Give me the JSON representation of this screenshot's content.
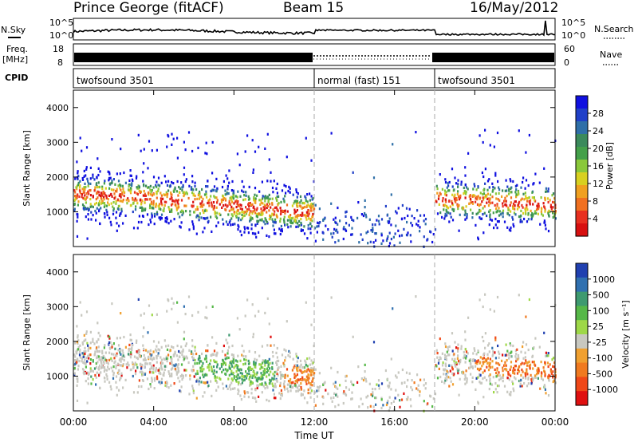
{
  "header": {
    "station": "Prince George (fitACF)",
    "beam": "Beam 15",
    "date": "16/May/2012"
  },
  "noise_panel": {
    "left_label": "N.Sky",
    "right_label": "N.Search",
    "tick_top": "10^5",
    "tick_bottom": "10^0"
  },
  "freq_panel": {
    "label_line1": "Freq.",
    "label_line2": "[MHz]",
    "left_ticks": [
      "18",
      "8"
    ],
    "right_ticks": [
      "60",
      "0"
    ],
    "right_label": "Nave"
  },
  "cpid_panel": {
    "label": "CPID",
    "segments": [
      {
        "name": "twofsound 3501",
        "start": 0,
        "end": 12
      },
      {
        "name": "normal (fast) 151",
        "start": 12,
        "end": 18
      },
      {
        "name": "twofsound 3501",
        "start": 18,
        "end": 24
      }
    ]
  },
  "chart_data": [
    {
      "type": "heatmap",
      "quantity": "Power",
      "ylabel": "Slant Range [km]",
      "ylim": [
        0,
        4500
      ],
      "yticks": [
        "1000",
        "2000",
        "3000",
        "4000"
      ],
      "xlim_hours": [
        0,
        24
      ],
      "colorbar": {
        "label": "Power [dB]",
        "ticks": [
          "4",
          "8",
          "12",
          "16",
          "20",
          "24",
          "28"
        ],
        "colors": [
          "#1010e0",
          "#2040c8",
          "#2f6fa8",
          "#3b8a5c",
          "#44a04a",
          "#8ac83a",
          "#d8d020",
          "#f0a020",
          "#f07020",
          "#e83020",
          "#d81010"
        ]
      },
      "bands": [
        {
          "t0": 0.0,
          "t1": 1.0,
          "r0": 1100,
          "r1": 2400,
          "level": "high"
        },
        {
          "t0": 1.0,
          "t1": 5.0,
          "r0": 1000,
          "r1": 2200,
          "level": "high"
        },
        {
          "t0": 5.0,
          "t1": 12.0,
          "r0": 700,
          "r1": 2200,
          "level": "high"
        },
        {
          "t0": 12.3,
          "t1": 17.9,
          "r0": 100,
          "r1": 1300,
          "level": "low"
        },
        {
          "t0": 18.0,
          "t1": 24.0,
          "r0": 900,
          "r1": 2200,
          "level": "mid"
        }
      ]
    },
    {
      "type": "heatmap",
      "quantity": "Velocity",
      "ylabel": "Slant Range [km]",
      "ylim": [
        0,
        4500
      ],
      "yticks": [
        "1000",
        "2000",
        "3000",
        "4000"
      ],
      "xlim_hours": [
        0,
        24
      ],
      "xticks": [
        "00:00",
        "04:00",
        "08:00",
        "12:00",
        "16:00",
        "20:00",
        "00:00"
      ],
      "xlabel": "Time UT",
      "colorbar": {
        "label": "Velocity [m s⁻¹]",
        "ticks": [
          "1000",
          "500",
          "100",
          "25",
          "-25",
          "-100",
          "-500",
          "-1000"
        ],
        "colors": [
          "#2040b0",
          "#3070b0",
          "#3e9a70",
          "#56b848",
          "#9ed848",
          "#c8c8c0",
          "#f0a030",
          "#f07a20",
          "#f04818",
          "#e01010"
        ]
      }
    }
  ]
}
